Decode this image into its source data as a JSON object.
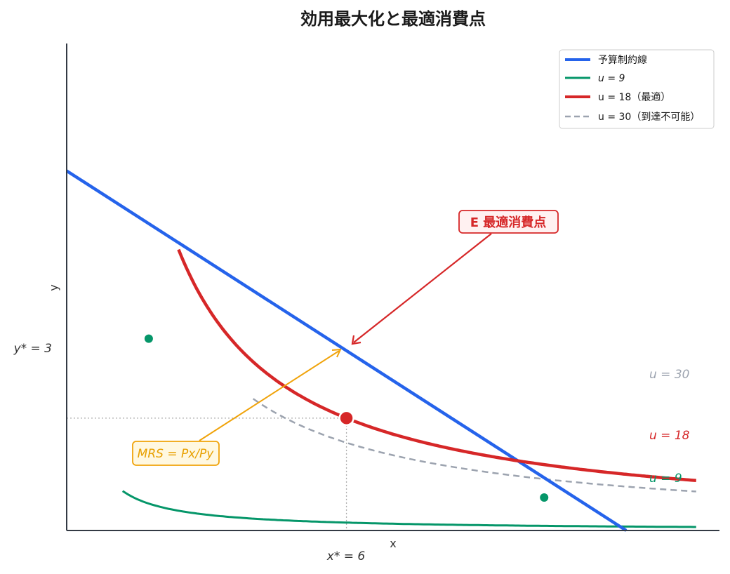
{
  "chart_data": {
    "type": "line",
    "title": "効用最大化と最適消費点",
    "xlabel": "x",
    "ylabel": "y",
    "xlim": [
      0,
      14
    ],
    "ylim": [
      0,
      13
    ],
    "grid": false,
    "legend_position": "top-right",
    "budget_line": {
      "name": "予算制約線",
      "intercept_y": 9,
      "slope": -1,
      "color": "#2563eb"
    },
    "series": [
      {
        "name": "u = 9",
        "legend": "u = 9",
        "u": 9,
        "color": "#059669",
        "label": "u = 9"
      },
      {
        "name": "u = 18",
        "legend": "u = 18（最適）",
        "u": 18,
        "color": "#d62728",
        "label": "u = 18"
      },
      {
        "name": "u = 30",
        "legend": "u = 30（到達不可能）",
        "u": 30,
        "color": "#9ca3af",
        "label": "u = 30",
        "dashed": true
      }
    ],
    "tangency_points": [
      {
        "x": 1.76,
        "y": 5.12
      },
      {
        "x": 10.24,
        "y": 0.88
      }
    ],
    "optimum": {
      "x": 6,
      "y": 3,
      "x_label": "x* = 6",
      "y_label": "y* = 3"
    },
    "annotations": {
      "optimum_box": "E  最適消費点",
      "mrs_box": "MRS = Px/Py"
    },
    "legend_entries": [
      "予算制約線",
      "u = 9",
      "u = 18（最適）",
      "u = 30（到達不可能）"
    ]
  }
}
